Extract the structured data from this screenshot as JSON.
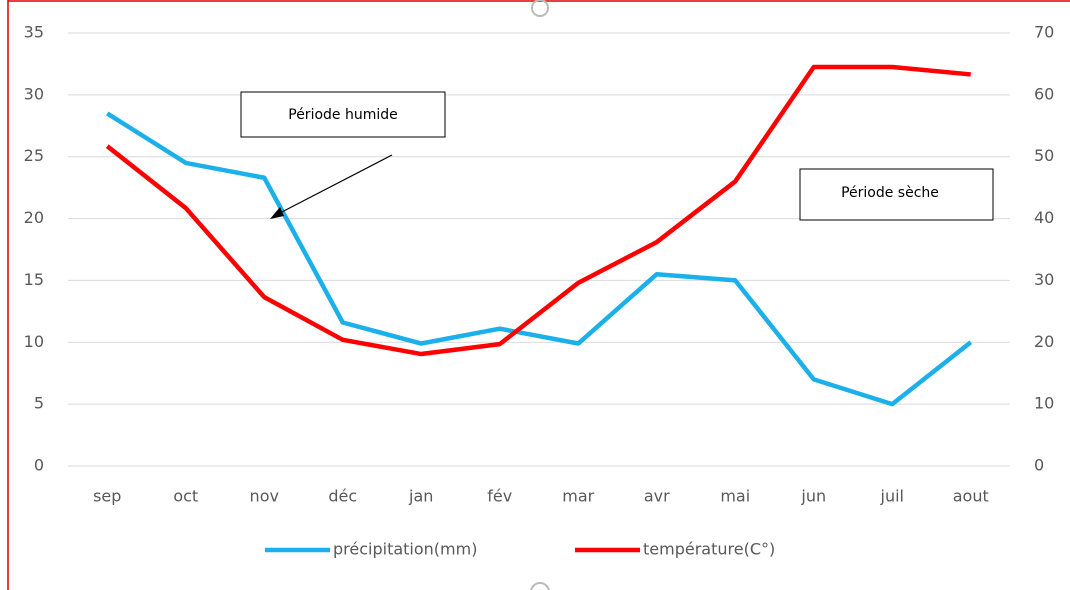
{
  "chart_data": {
    "type": "line",
    "categories": [
      "sep",
      "oct",
      "nov",
      "déc",
      "jan",
      "fév",
      "mar",
      "avr",
      "mai",
      "jun",
      "juil",
      "aout"
    ],
    "series": [
      {
        "name": "précipitation(mm)",
        "color": "#1cb0ea",
        "values": [
          28.5,
          24.5,
          23.3,
          11.6,
          9.9,
          11.1,
          9.9,
          15.5,
          15,
          7,
          5,
          10
        ]
      },
      {
        "name": "température(C°)",
        "color": "#ff0000",
        "axis": "y2",
        "values": [
          51.7,
          41.7,
          27.3,
          20.4,
          18.1,
          19.7,
          29.6,
          36.2,
          46,
          64.5,
          64.5,
          63.3
        ]
      }
    ],
    "ylim": [
      0,
      35
    ],
    "yticks": [
      0,
      5,
      10,
      15,
      20,
      25,
      30,
      35
    ],
    "y2lim": [
      0,
      70
    ],
    "y2ticks": [
      0,
      10,
      20,
      30,
      40,
      50,
      60,
      70
    ],
    "grid": true,
    "legend": "bottom",
    "annotations": [
      "Période humide",
      "Période sèche"
    ]
  }
}
